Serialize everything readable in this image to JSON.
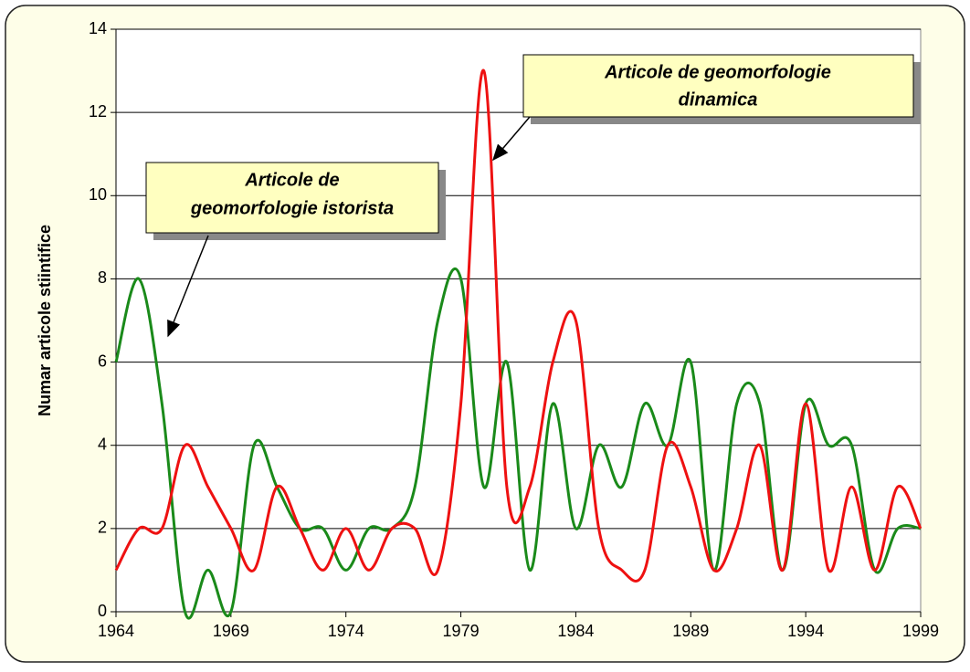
{
  "chart_data": {
    "type": "line",
    "ylabel": "Numar articole stiintifice",
    "x": [
      1964,
      1965,
      1966,
      1967,
      1968,
      1969,
      1970,
      1971,
      1972,
      1973,
      1974,
      1975,
      1976,
      1977,
      1978,
      1979,
      1980,
      1981,
      1982,
      1983,
      1984,
      1985,
      1986,
      1987,
      1988,
      1989,
      1990,
      1991,
      1992,
      1993,
      1994,
      1995,
      1996,
      1997,
      1998,
      1999
    ],
    "series": [
      {
        "color": "#1a8a1a",
        "values": [
          6,
          8,
          5,
          0,
          1,
          0,
          4,
          3,
          2,
          2,
          1,
          2,
          2,
          3,
          7,
          8,
          3,
          6,
          1,
          5,
          2,
          4,
          3,
          5,
          4,
          6,
          1,
          5,
          5,
          1,
          5,
          4,
          4,
          1,
          2,
          2
        ]
      },
      {
        "color": "#ee1111",
        "values": [
          1,
          2,
          2,
          4,
          3,
          2,
          1,
          3,
          2,
          1,
          2,
          1,
          2,
          2,
          1,
          5,
          13,
          3,
          3,
          6,
          7,
          2,
          1,
          1,
          4,
          3,
          1,
          2,
          4,
          1,
          5,
          1,
          3,
          1,
          3,
          2
        ]
      }
    ],
    "annotations": [
      {
        "lines": [
          "Articole de geomorfologie",
          "dinamica"
        ]
      },
      {
        "lines": [
          "Articole de",
          "geomorfologie istorista"
        ]
      }
    ],
    "xlim": [
      1964,
      1999
    ],
    "xticks": [
      1964,
      1969,
      1974,
      1979,
      1984,
      1989,
      1994,
      1999
    ],
    "ylim": [
      0,
      14
    ],
    "yticks": [
      0,
      2,
      4,
      6,
      8,
      10,
      12,
      14
    ],
    "grid": true
  }
}
